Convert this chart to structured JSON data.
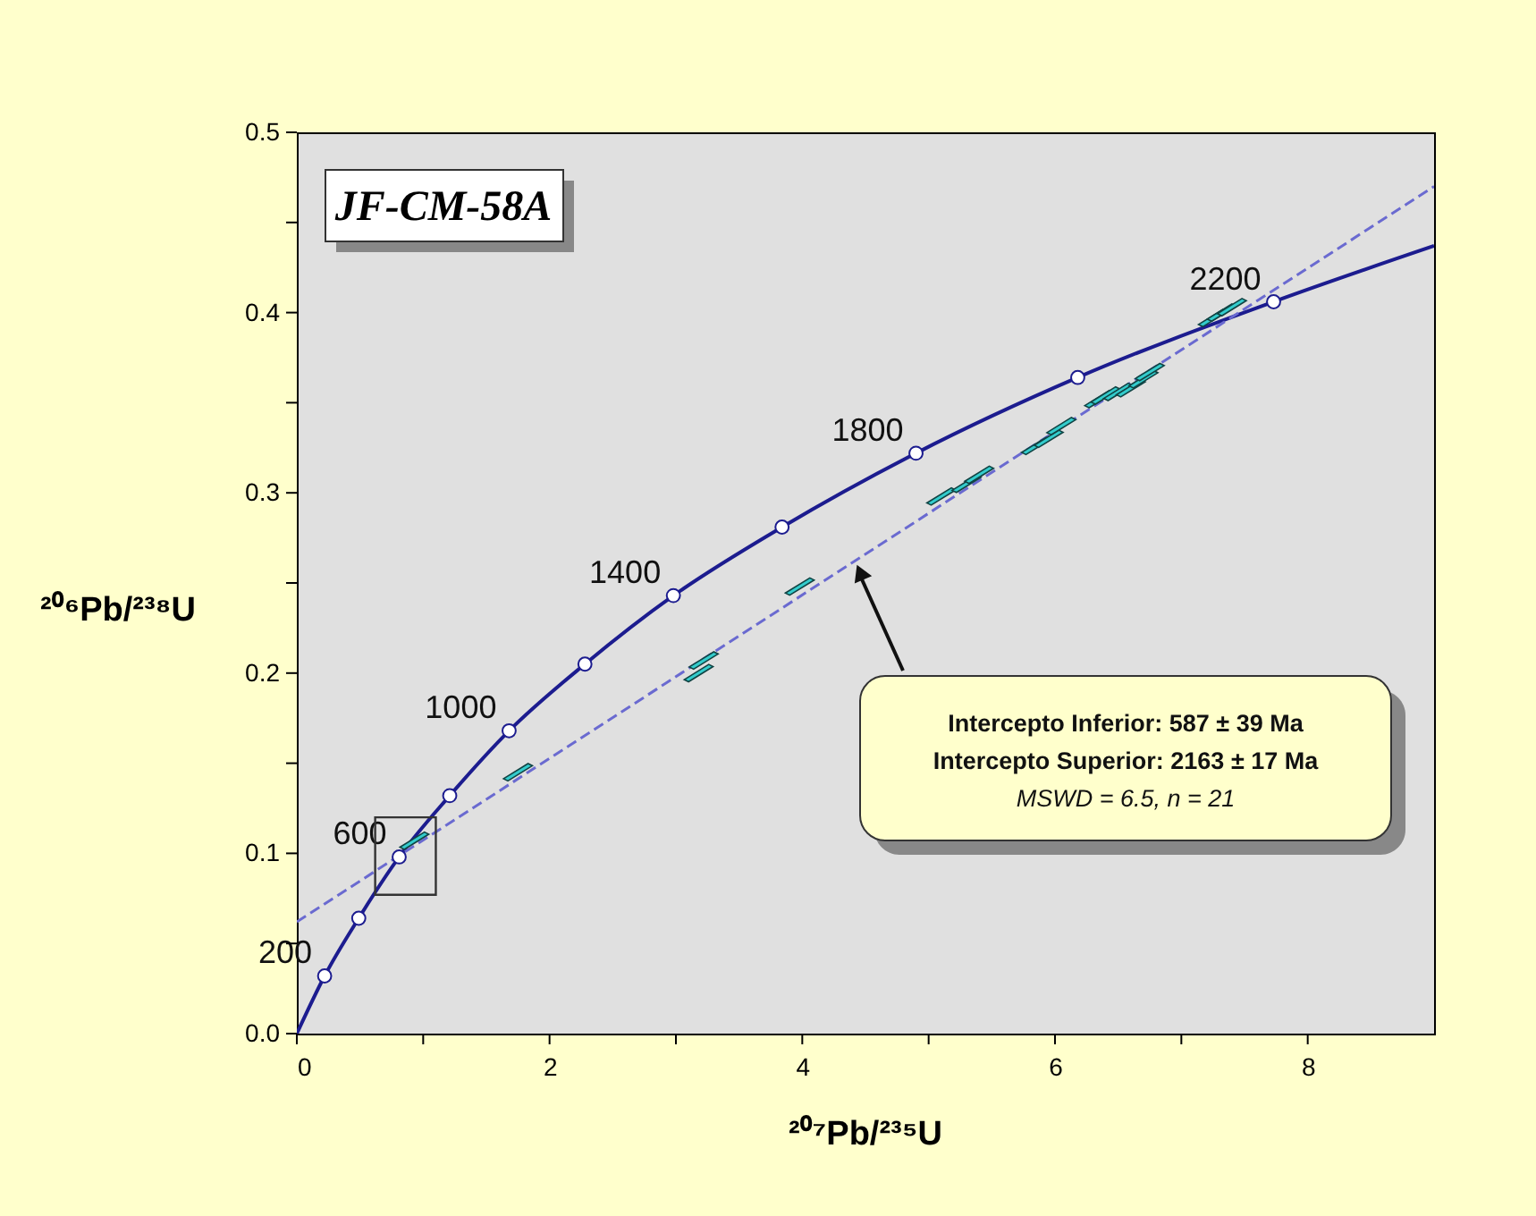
{
  "chart_data": {
    "type": "line",
    "title": "JF-CM-58A",
    "xlabel": "²⁰⁷Pb/²³⁵U",
    "ylabel": "²⁰⁶Pb/²³⁸U",
    "xlim": [
      0,
      9
    ],
    "ylim": [
      0,
      0.5
    ],
    "xticks": [
      0,
      {
        "value": 1,
        "label": null
      },
      2,
      {
        "value": 3,
        "label": null
      },
      4,
      {
        "value": 5,
        "label": null
      },
      6,
      {
        "value": 7,
        "label": null
      },
      8
    ],
    "yticks": [
      {
        "value": 0,
        "label": "0.0"
      },
      {
        "value": 0.05,
        "label": null
      },
      0.1,
      {
        "value": 0.15,
        "label": null
      },
      0.2,
      {
        "value": 0.25,
        "label": null
      },
      0.3,
      {
        "value": 0.35,
        "label": null
      },
      0.4,
      {
        "value": 0.45,
        "label": null
      },
      0.5
    ],
    "grid": false,
    "series": [
      {
        "color": "#1c1c8f",
        "line_style": "solid",
        "marker": "none",
        "x": [
          0,
          0.22,
          0.49,
          0.81,
          1.21,
          1.68,
          2.28,
          2.98,
          3.84,
          4.9,
          6.18,
          7.73,
          9
        ],
        "values": [
          0,
          0.032,
          0.064,
          0.098,
          0.132,
          0.168,
          0.205,
          0.243,
          0.281,
          0.322,
          0.364,
          0.406,
          0.437
        ]
      },
      {
        "color": "#6a6ad0",
        "line_style": "dashed",
        "marker": "none",
        "x": [
          0,
          9
        ],
        "values": [
          0.062,
          0.47
        ]
      },
      {
        "type": "scatter",
        "color": "#33cccc",
        "marker": "diamond",
        "x": [
          0.93,
          1.75,
          3.18,
          3.22,
          3.98,
          5.1,
          5.3,
          5.4,
          5.85,
          5.95,
          6.05,
          6.35,
          6.4,
          6.5,
          6.6,
          6.7,
          6.75,
          7.25,
          7.32,
          7.4
        ],
        "values": [
          0.107,
          0.145,
          0.2,
          0.207,
          0.248,
          0.298,
          0.305,
          0.31,
          0.326,
          0.33,
          0.337,
          0.352,
          0.354,
          0.356,
          0.358,
          0.363,
          0.367,
          0.397,
          0.4,
          0.403
        ]
      },
      {
        "type": "scatter",
        "color": "#ffffff",
        "marker": "circle",
        "x": [
          0.22,
          0.49,
          0.81,
          1.21,
          1.68,
          2.28,
          2.98,
          3.84,
          4.9,
          6.18,
          7.73
        ],
        "values": [
          0.032,
          0.064,
          0.098,
          0.132,
          0.168,
          0.205,
          0.243,
          0.281,
          0.322,
          0.364,
          0.406
        ]
      }
    ],
    "annotations": [
      {
        "text": "200",
        "x": 0.22,
        "y": 0.032
      },
      {
        "text": "600",
        "x": 0.81,
        "y": 0.098
      },
      {
        "text": "1000",
        "x": 1.68,
        "y": 0.168
      },
      {
        "text": "1400",
        "x": 2.98,
        "y": 0.243
      },
      {
        "text": "1800",
        "x": 4.9,
        "y": 0.322
      },
      {
        "text": "2200",
        "x": 7.73,
        "y": 0.406
      },
      "Intercepto Inferior: 587 ± 39 Ma",
      "Intercepto Superior: 2163 ± 17 Ma",
      "MSWD = 6.5, n = 21"
    ]
  }
}
